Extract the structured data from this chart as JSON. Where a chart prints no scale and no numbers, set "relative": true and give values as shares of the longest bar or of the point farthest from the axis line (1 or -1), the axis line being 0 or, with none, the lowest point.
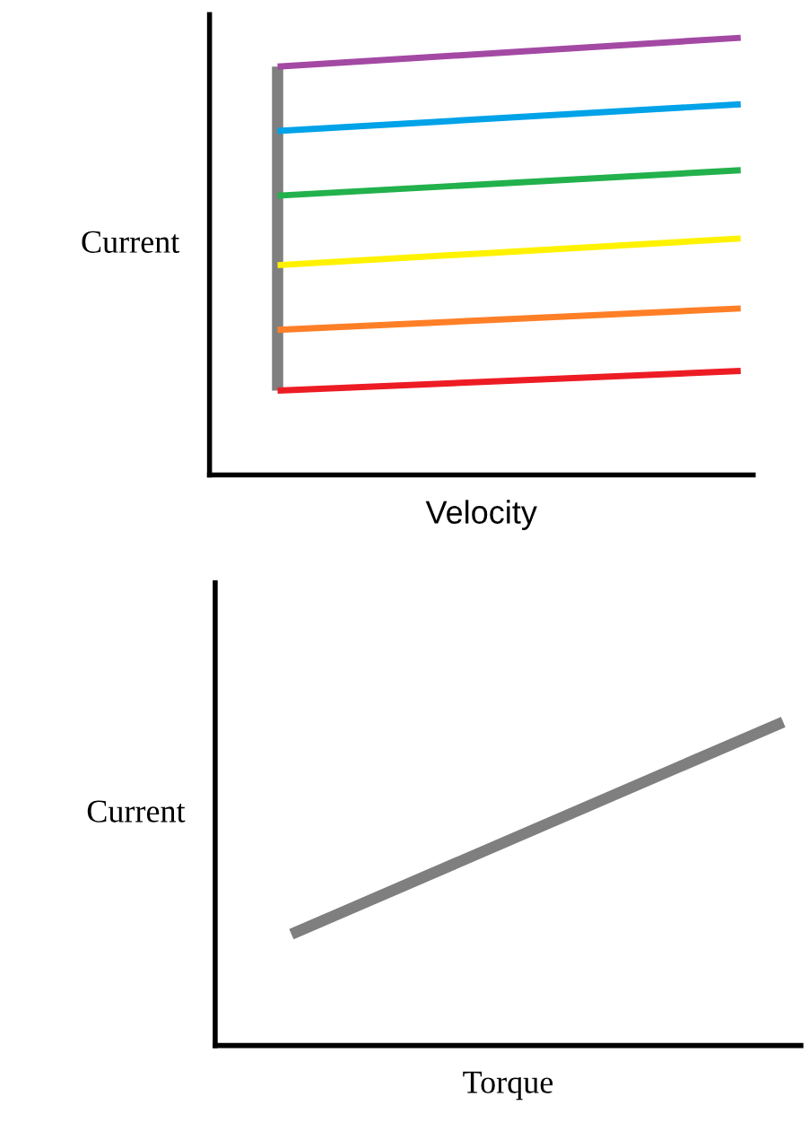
{
  "chart_data": [
    {
      "type": "line",
      "relative": true,
      "xlabel": "Velocity",
      "ylabel": "Current",
      "categories": [
        null,
        null
      ],
      "tick_labels": false,
      "legend": false,
      "series": [
        {
          "color": "#a349a4",
          "values": [
            0.934,
            1
          ]
        },
        {
          "color": "#00a2e8",
          "values": [
            0.787,
            0.848
          ]
        },
        {
          "color": "#22b14c",
          "values": [
            0.639,
            0.697
          ]
        },
        {
          "color": "#fff200",
          "values": [
            0.48,
            0.541
          ]
        },
        {
          "color": "#ff7f27",
          "values": [
            0.332,
            0.381
          ]
        },
        {
          "color": "#ed1c24",
          "values": [
            0.193,
            0.238
          ]
        }
      ]
    },
    {
      "type": "line",
      "relative": true,
      "xlabel": "Torque",
      "ylabel": "Current",
      "categories": [
        null,
        null
      ],
      "tick_labels": false,
      "legend": false,
      "series": [
        {
          "color": "#7f7f7f",
          "values": [
            0.344,
            1
          ]
        }
      ]
    }
  ]
}
